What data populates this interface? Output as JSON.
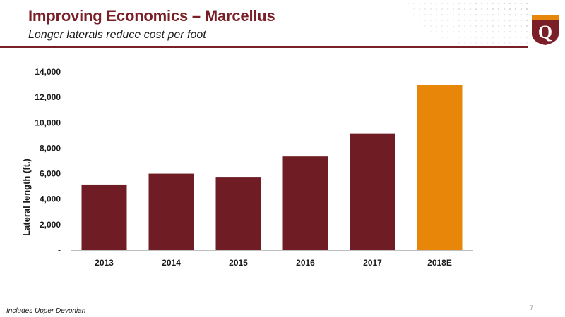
{
  "header": {
    "title": "Improving Economics – Marcellus",
    "subtitle": "Longer laterals reduce cost per foot"
  },
  "logo": {
    "letter": "Q",
    "color": "#7a1f27",
    "accent": "#e6860a"
  },
  "footer": {
    "note": "Includes Upper Devonian",
    "page_number": "7"
  },
  "chart_data": {
    "type": "bar",
    "categories": [
      "2013",
      "2014",
      "2015",
      "2016",
      "2017",
      "2018E"
    ],
    "values": [
      5150,
      6000,
      5750,
      7350,
      9150,
      12950
    ],
    "ylabel": "Lateral length (ft.)",
    "ylim": [
      0,
      14000
    ],
    "yticks": [
      0,
      2000,
      4000,
      6000,
      8000,
      10000,
      12000,
      14000
    ],
    "ytick_labels": [
      "-",
      "2,000",
      "4,000",
      "6,000",
      "8,000",
      "10,000",
      "12,000",
      "14,000"
    ],
    "grid": false,
    "legend": "none",
    "colors": {
      "actual": "#701c24",
      "estimate": "#e8860a"
    },
    "estimate_categories": [
      "2018E"
    ]
  }
}
